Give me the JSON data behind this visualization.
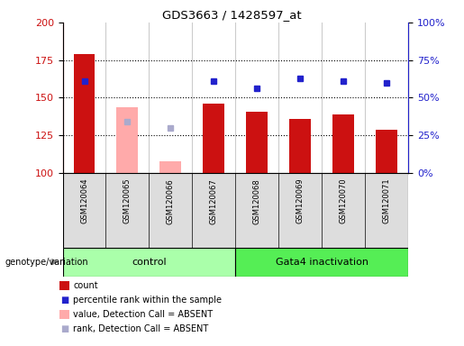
{
  "title": "GDS3663 / 1428597_at",
  "samples": [
    "GSM120064",
    "GSM120065",
    "GSM120066",
    "GSM120067",
    "GSM120068",
    "GSM120069",
    "GSM120070",
    "GSM120071"
  ],
  "red_bars": [
    179,
    null,
    null,
    146,
    141,
    136,
    139,
    129
  ],
  "pink_bars": [
    null,
    144,
    108,
    null,
    null,
    null,
    null,
    null
  ],
  "blue_squares": [
    161,
    null,
    null,
    161,
    156,
    163,
    161,
    160
  ],
  "lavender_squares": [
    null,
    134,
    130,
    null,
    null,
    null,
    null,
    null
  ],
  "ylim_left": [
    100,
    200
  ],
  "ylim_right": [
    0,
    100
  ],
  "yticks_left": [
    100,
    125,
    150,
    175,
    200
  ],
  "yticks_right": [
    0,
    25,
    50,
    75,
    100
  ],
  "ytick_labels_right": [
    "0%",
    "25%",
    "50%",
    "75%",
    "100%"
  ],
  "control_label": "control",
  "gata4_label": "Gata4 inactivation",
  "genotype_label": "genotype/variation",
  "red_color": "#cc1111",
  "pink_color": "#ffaaaa",
  "blue_color": "#2222cc",
  "lavender_color": "#aaaacc",
  "control_bg": "#aaffaa",
  "gata4_bg": "#55ee55",
  "bar_width": 0.5,
  "legend_items": [
    "count",
    "percentile rank within the sample",
    "value, Detection Call = ABSENT",
    "rank, Detection Call = ABSENT"
  ]
}
